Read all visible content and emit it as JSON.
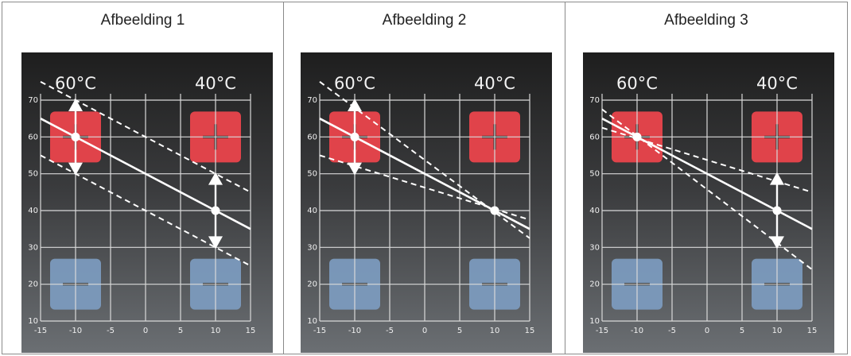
{
  "panels": [
    {
      "title": "Afbeelding 1",
      "header_left": "60°C",
      "header_right": "40°C",
      "main_line": [
        [
          -15,
          65
        ],
        [
          15,
          35
        ]
      ],
      "dashed_lines": [
        [
          [
            -15,
            75
          ],
          [
            15,
            45
          ]
        ],
        [
          [
            -15,
            55
          ],
          [
            15,
            25
          ]
        ]
      ],
      "points": [
        [
          -10,
          60
        ],
        [
          10,
          40
        ]
      ],
      "arrows": [
        {
          "x": -10,
          "from": 60,
          "to": 70
        },
        {
          "x": -10,
          "from": 60,
          "to": 50
        },
        {
          "x": 10,
          "from": 40,
          "to": 50
        },
        {
          "x": 10,
          "from": 40,
          "to": 30
        }
      ]
    },
    {
      "title": "Afbeelding 2",
      "header_left": "60°C",
      "header_right": "40°C",
      "main_line": [
        [
          -15,
          65
        ],
        [
          15,
          35
        ]
      ],
      "dashed_lines": [
        [
          [
            -15,
            75
          ],
          [
            15,
            32.5
          ]
        ],
        [
          [
            -15,
            55
          ],
          [
            15,
            37.5
          ]
        ]
      ],
      "points": [
        [
          -10,
          60
        ],
        [
          10,
          40
        ]
      ],
      "arrows": [
        {
          "x": -10,
          "from": 60,
          "to": 70
        },
        {
          "x": -10,
          "from": 60,
          "to": 50
        }
      ]
    },
    {
      "title": "Afbeelding 3",
      "header_left": "60°C",
      "header_right": "40°C",
      "main_line": [
        [
          -15,
          65
        ],
        [
          15,
          35
        ]
      ],
      "dashed_lines": [
        [
          [
            -15,
            62.5
          ],
          [
            15,
            45
          ]
        ],
        [
          [
            -15,
            67.5
          ],
          [
            15,
            24
          ]
        ]
      ],
      "points": [
        [
          -10,
          60
        ],
        [
          10,
          40
        ]
      ],
      "arrows": [
        {
          "x": 10,
          "from": 40,
          "to": 50
        },
        {
          "x": 10,
          "from": 40,
          "to": 30
        }
      ]
    }
  ],
  "axes": {
    "x_ticks": [
      -15,
      -10,
      -5,
      0,
      5,
      10,
      15
    ],
    "y_ticks": [
      10,
      20,
      30,
      40,
      50,
      60,
      70
    ],
    "x_range": [
      -15,
      15
    ],
    "y_range": [
      10,
      70
    ]
  },
  "buttons": {
    "plus_color": "#e0434a",
    "minus_color": "#7d9cc0"
  }
}
